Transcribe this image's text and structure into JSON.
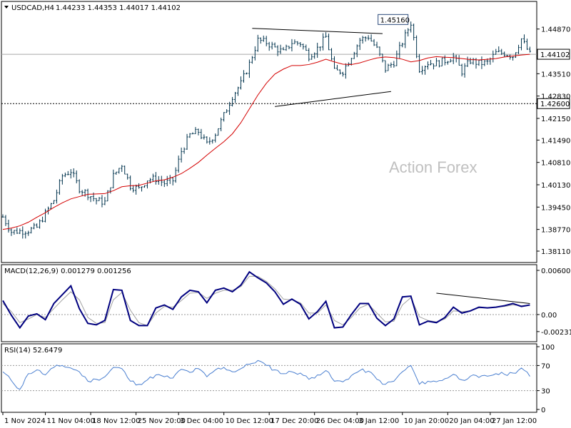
{
  "header": {
    "menu_icon": "triangle-down-icon",
    "symbol": "USDCAD,H4",
    "ohlc": "1.44233 1.44353 1.44017 1.44102"
  },
  "watermark": "Action Forex",
  "colors": {
    "background": "#ffffff",
    "bars": "#00334d",
    "ma": "#d40000",
    "macd": "#00007f",
    "signal": "#a0a0a0",
    "rsi": "#4a7fd0",
    "grid": "#888888"
  },
  "chart_data": [
    {
      "type": "ohlc",
      "title": "USDCAD,H4",
      "y_ticks": [
        "1.44870",
        "1.43510",
        "1.42830",
        "1.42150",
        "1.41490",
        "1.40810",
        "1.40130",
        "1.39450",
        "1.38770",
        "1.38110"
      ],
      "ylim": [
        1.3785,
        1.4558
      ],
      "price_label": "1.44102",
      "level_label": "1.42600",
      "peak_label": "1.45160",
      "current_price": 1.44102,
      "support_level": 1.426,
      "peak_value": 1.4516,
      "moving_average": {
        "x": [
          0,
          3,
          6,
          9,
          12,
          15,
          18,
          21,
          24,
          27,
          30,
          33,
          36,
          39,
          42,
          45,
          48,
          51,
          54,
          57,
          60,
          63,
          66,
          69,
          72,
          75,
          78,
          81,
          84,
          87,
          90,
          93,
          96,
          99,
          102,
          105,
          108,
          111,
          114,
          117,
          120,
          123,
          126,
          129,
          132,
          135,
          138,
          141,
          144,
          147,
          150,
          153,
          156,
          159,
          162,
          165,
          168,
          171,
          174,
          177,
          180,
          183,
          186
        ],
        "values": [
          1.3877,
          1.3881,
          1.3888,
          1.3899,
          1.3914,
          1.3928,
          1.3944,
          1.3958,
          1.397,
          1.3977,
          1.3984,
          1.3985,
          1.3986,
          1.3995,
          1.4007,
          1.401,
          1.4011,
          1.4018,
          1.4025,
          1.4028,
          1.4036,
          1.4047,
          1.4063,
          1.4081,
          1.4103,
          1.4124,
          1.4144,
          1.4168,
          1.4202,
          1.4244,
          1.4286,
          1.4322,
          1.435,
          1.4365,
          1.4376,
          1.4376,
          1.4379,
          1.4386,
          1.4395,
          1.4387,
          1.438,
          1.4379,
          1.4384,
          1.4392,
          1.4399,
          1.4402,
          1.44,
          1.4395,
          1.4387,
          1.4391,
          1.4399,
          1.4403,
          1.4401,
          1.44,
          1.4397,
          1.4394,
          1.4393,
          1.4395,
          1.4397,
          1.4402,
          1.4405,
          1.4408,
          1.441
        ]
      },
      "trendlines": [
        {
          "name": "upper",
          "x": [
            88,
            134
          ],
          "values": [
            1.4489,
            1.4473
          ]
        },
        {
          "name": "lower",
          "x": [
            96,
            137
          ],
          "values": [
            1.4251,
            1.4297
          ]
        }
      ],
      "series": [
        {
          "name": "OHLC",
          "x": [
            0,
            3,
            6,
            9,
            12,
            15,
            18,
            21,
            24,
            27,
            30,
            33,
            36,
            39,
            42,
            45,
            48,
            51,
            54,
            57,
            60,
            63,
            66,
            69,
            72,
            75,
            78,
            81,
            84,
            87,
            90,
            93,
            96,
            99,
            102,
            105,
            108,
            111,
            114,
            117,
            120,
            123,
            126,
            129,
            132,
            135,
            138,
            141,
            144,
            147,
            150,
            153,
            156,
            159,
            162,
            165,
            168,
            171,
            174,
            177,
            180,
            183,
            186
          ],
          "close": [
            1.3915,
            1.387,
            1.3872,
            1.3874,
            1.3883,
            1.3925,
            1.3966,
            1.404,
            1.4055,
            1.4002,
            1.3985,
            1.3965,
            1.396,
            1.404,
            1.4075,
            1.401,
            1.4,
            1.4029,
            1.4031,
            1.4018,
            1.4026,
            1.4115,
            1.4164,
            1.4175,
            1.4136,
            1.4169,
            1.4224,
            1.4283,
            1.4321,
            1.4381,
            1.4453,
            1.4446,
            1.443,
            1.4416,
            1.4446,
            1.4444,
            1.4406,
            1.4428,
            1.4463,
            1.4358,
            1.4359,
            1.4405,
            1.4454,
            1.4464,
            1.4426,
            1.4365,
            1.4386,
            1.4447,
            1.4506,
            1.4366,
            1.4384,
            1.4382,
            1.4391,
            1.4403,
            1.4358,
            1.4391,
            1.4382,
            1.4385,
            1.4414,
            1.4414,
            1.4405,
            1.4457,
            1.441
          ]
        }
      ]
    },
    {
      "type": "line",
      "title": "MACD(12,26,9) 0.001279 0.001256",
      "y_ticks": [
        "0.006007",
        "0.00",
        "-0.002318"
      ],
      "ylim": [
        -0.0034,
        0.0063
      ],
      "series": [
        {
          "name": "MACD",
          "x": [
            0,
            3,
            6,
            9,
            12,
            15,
            18,
            21,
            24,
            27,
            30,
            33,
            36,
            39,
            42,
            45,
            48,
            51,
            54,
            57,
            60,
            63,
            66,
            69,
            72,
            75,
            78,
            81,
            84,
            87,
            90,
            93,
            96,
            99,
            102,
            105,
            108,
            111,
            114,
            117,
            120,
            123,
            126,
            129,
            132,
            135,
            138,
            141,
            144,
            147,
            150,
            153,
            156,
            159,
            162,
            165,
            168,
            171,
            174,
            177,
            180,
            183,
            186
          ],
          "values": [
            0.0019,
            -0.0001,
            -0.0018,
            -0.0002,
            0.0001,
            -0.0007,
            0.0015,
            0.0027,
            0.0039,
            0.0008,
            -0.0012,
            -0.0014,
            -0.0008,
            0.0034,
            0.0033,
            -0.0008,
            -0.0015,
            -0.0015,
            0.0009,
            0.0013,
            0.0007,
            0.0024,
            0.0033,
            0.0031,
            0.0016,
            0.0033,
            0.0036,
            0.0031,
            0.004,
            0.0058,
            0.005,
            0.0043,
            0.0031,
            0.0014,
            0.0021,
            0.0014,
            -0.0006,
            0.0004,
            0.0018,
            -0.0018,
            -0.0017,
            0.0,
            0.0015,
            0.0015,
            -0.0005,
            -0.0015,
            -0.0006,
            0.0024,
            0.0025,
            -0.0014,
            -0.0009,
            -0.0011,
            -0.0004,
            0.001,
            0.0002,
            0.0005,
            0.001,
            0.0009,
            0.001,
            0.0012,
            0.0015,
            0.0011,
            0.0013
          ]
        },
        {
          "name": "Signal",
          "x": [
            0,
            3,
            6,
            9,
            12,
            15,
            18,
            21,
            24,
            27,
            30,
            33,
            36,
            39,
            42,
            45,
            48,
            51,
            54,
            57,
            60,
            63,
            66,
            69,
            72,
            75,
            78,
            81,
            84,
            87,
            90,
            93,
            96,
            99,
            102,
            105,
            108,
            111,
            114,
            117,
            120,
            123,
            126,
            129,
            132,
            135,
            138,
            141,
            144,
            147,
            150,
            153,
            156,
            159,
            162,
            165,
            168,
            171,
            174,
            177,
            180,
            183,
            186
          ],
          "values": [
            0.0015,
            0.0004,
            -0.0011,
            -0.0006,
            0.0,
            -0.0004,
            0.0008,
            0.002,
            0.0031,
            0.002,
            -0.0004,
            -0.0012,
            -0.0011,
            0.002,
            0.003,
            0.0006,
            -0.0011,
            -0.0015,
            0.0002,
            0.0011,
            0.001,
            0.0019,
            0.0029,
            0.003,
            0.0022,
            0.0029,
            0.0033,
            0.0033,
            0.0038,
            0.0052,
            0.0052,
            0.0045,
            0.0035,
            0.0021,
            0.002,
            0.0016,
            0.0002,
            0.0002,
            0.0013,
            -0.0008,
            -0.0014,
            -0.0004,
            0.0009,
            0.0014,
            0.0002,
            -0.001,
            -0.0009,
            0.0013,
            0.0023,
            -0.0003,
            -0.0008,
            -0.001,
            -0.0006,
            0.0005,
            0.0004,
            0.0005,
            0.0009,
            0.0009,
            0.001,
            0.0011,
            0.0013,
            0.0012,
            0.0013
          ]
        }
      ],
      "trendline": {
        "x": [
          153,
          186
        ],
        "values": [
          0.0029,
          0.0015
        ]
      }
    },
    {
      "type": "line",
      "title": "RSI(14) 52.6479",
      "y_ticks": [
        "100",
        "70",
        "30",
        "0"
      ],
      "ylim": [
        0,
        100
      ],
      "series": [
        {
          "name": "RSI",
          "x": [
            0,
            3,
            6,
            9,
            12,
            15,
            18,
            21,
            24,
            27,
            30,
            33,
            36,
            39,
            42,
            45,
            48,
            51,
            54,
            57,
            60,
            63,
            66,
            69,
            72,
            75,
            78,
            81,
            84,
            87,
            90,
            93,
            96,
            99,
            102,
            105,
            108,
            111,
            114,
            117,
            120,
            123,
            126,
            129,
            132,
            135,
            138,
            141,
            144,
            147,
            150,
            153,
            156,
            159,
            162,
            165,
            168,
            171,
            174,
            177,
            180,
            183,
            186
          ],
          "values": [
            60,
            46,
            32,
            57,
            63,
            55,
            67,
            70,
            66,
            60,
            45,
            48,
            52,
            67,
            65,
            45,
            40,
            47,
            55,
            52,
            50,
            64,
            59,
            65,
            52,
            63,
            67,
            60,
            65,
            72,
            78,
            70,
            63,
            57,
            60,
            58,
            48,
            55,
            62,
            45,
            44,
            54,
            62,
            61,
            48,
            40,
            45,
            60,
            70,
            40,
            45,
            44,
            49,
            56,
            47,
            53,
            51,
            53,
            57,
            56,
            58,
            66,
            52.65
          ]
        }
      ]
    }
  ],
  "x_ticks": [
    {
      "bar": 0,
      "label": "1 Nov 2024"
    },
    {
      "bar": 15,
      "label": "11 Nov 04:00"
    },
    {
      "bar": 31,
      "label": "18 Nov 12:00"
    },
    {
      "bar": 47,
      "label": "25 Nov 20:00"
    },
    {
      "bar": 62,
      "label": "3 Dec 04:00"
    },
    {
      "bar": 78,
      "label": "10 Dec 12:00"
    },
    {
      "bar": 94,
      "label": "17 Dec 20:00"
    },
    {
      "bar": 110,
      "label": "26 Dec 04:00"
    },
    {
      "bar": 125,
      "label": "3 Jan 12:00"
    },
    {
      "bar": 141,
      "label": "10 Jan 20:00"
    },
    {
      "bar": 157,
      "label": "20 Jan 04:00"
    },
    {
      "bar": 172,
      "label": "27 Jan 12:00"
    }
  ]
}
